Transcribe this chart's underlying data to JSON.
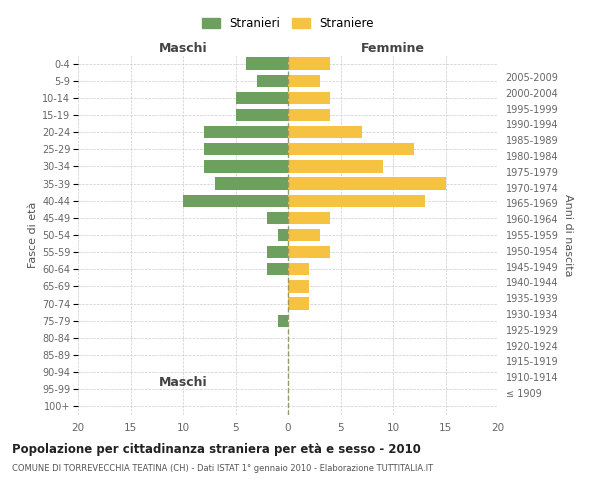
{
  "age_groups": [
    "100+",
    "95-99",
    "90-94",
    "85-89",
    "80-84",
    "75-79",
    "70-74",
    "65-69",
    "60-64",
    "55-59",
    "50-54",
    "45-49",
    "40-44",
    "35-39",
    "30-34",
    "25-29",
    "20-24",
    "15-19",
    "10-14",
    "5-9",
    "0-4"
  ],
  "birth_years": [
    "≤ 1909",
    "1910-1914",
    "1915-1919",
    "1920-1924",
    "1925-1929",
    "1930-1934",
    "1935-1939",
    "1940-1944",
    "1945-1949",
    "1950-1954",
    "1955-1959",
    "1960-1964",
    "1965-1969",
    "1970-1974",
    "1975-1979",
    "1980-1984",
    "1985-1989",
    "1990-1994",
    "1995-1999",
    "2000-2004",
    "2005-2009"
  ],
  "maschi": [
    0,
    0,
    0,
    0,
    0,
    1,
    0,
    0,
    2,
    2,
    1,
    2,
    10,
    7,
    8,
    8,
    8,
    5,
    5,
    3,
    4
  ],
  "femmine": [
    0,
    0,
    0,
    0,
    0,
    0,
    2,
    2,
    2,
    4,
    3,
    4,
    13,
    15,
    9,
    12,
    7,
    4,
    4,
    3,
    4
  ],
  "male_color": "#6d9f5e",
  "female_color": "#f5c242",
  "grid_color": "#cccccc",
  "dashed_line_color": "#999966",
  "title": "Popolazione per cittadinanza straniera per età e sesso - 2010",
  "subtitle": "COMUNE DI TORREVECCHIA TEATINA (CH) - Dati ISTAT 1° gennaio 2010 - Elaborazione TUTTITALIA.IT",
  "xlabel_left": "Maschi",
  "xlabel_right": "Femmine",
  "ylabel_left": "Fasce di età",
  "ylabel_right": "Anni di nascita",
  "legend_stranieri": "Stranieri",
  "legend_straniere": "Straniere",
  "xlim": 20,
  "bar_height": 0.72,
  "background_color": "#ffffff"
}
